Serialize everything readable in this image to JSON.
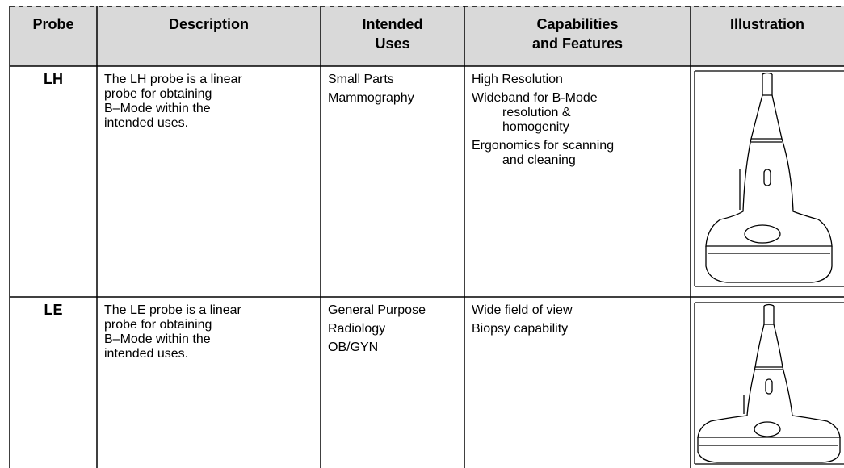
{
  "table": {
    "headers": [
      [
        "Probe"
      ],
      [
        "Description"
      ],
      [
        "Intended",
        "Uses"
      ],
      [
        "Capabilities",
        "and Features"
      ],
      [
        "Illustration"
      ]
    ],
    "rows": [
      {
        "probe": "LH",
        "description": [
          "The LH probe is a linear",
          "probe for obtaining",
          "B–Mode within the",
          "intended uses."
        ],
        "intended_uses": [
          "Small Parts",
          "Mammography"
        ],
        "capabilities": [
          [
            "High Resolution"
          ],
          [
            "Wideband for B-Mode",
            "resolution &",
            "homogenity"
          ],
          [
            "Ergonomics for scanning",
            "and cleaning"
          ]
        ]
      },
      {
        "probe": "LE",
        "description": [
          "The LE probe is a linear",
          "probe for obtaining",
          "B–Mode within the",
          "intended uses."
        ],
        "intended_uses": [
          "General Purpose",
          "Radiology",
          "OB/GYN"
        ],
        "capabilities": [
          [
            "Wide field of view"
          ],
          [
            "Biopsy capability"
          ]
        ]
      }
    ]
  }
}
